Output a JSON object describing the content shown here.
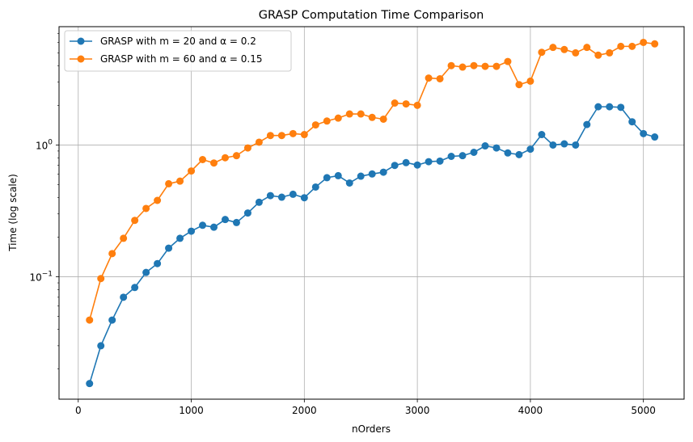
{
  "chart_data": {
    "type": "line",
    "title": "GRASP Computation Time Comparison",
    "xlabel": "nOrders",
    "ylabel": "Time (log scale)",
    "yscale": "log",
    "xlim": [
      -170,
      5360
    ],
    "ylim": [
      0.0118,
      7.9
    ],
    "xticks": [
      {
        "value": 0,
        "label": "0"
      },
      {
        "value": 1000,
        "label": "1000"
      },
      {
        "value": 2000,
        "label": "2000"
      },
      {
        "value": 3000,
        "label": "3000"
      },
      {
        "value": 4000,
        "label": "4000"
      },
      {
        "value": 5000,
        "label": "5000"
      }
    ],
    "yticks": [
      {
        "value": 0.1,
        "base": "10",
        "exp": "−1"
      },
      {
        "value": 1,
        "base": "10",
        "exp": "0"
      }
    ],
    "grid": true,
    "legend_position": "top-left",
    "x": [
      100,
      200,
      300,
      400,
      500,
      600,
      700,
      800,
      900,
      1000,
      1100,
      1200,
      1300,
      1400,
      1500,
      1600,
      1700,
      1800,
      1900,
      2000,
      2100,
      2200,
      2300,
      2400,
      2500,
      2600,
      2700,
      2800,
      2900,
      3000,
      3100,
      3200,
      3300,
      3400,
      3500,
      3600,
      3700,
      3800,
      3900,
      4000,
      4100,
      4200,
      4300,
      4400,
      4500,
      4600,
      4700,
      4800,
      4900,
      5000,
      5100
    ],
    "series": [
      {
        "name": "GRASP with m = 20 and α = 0.2",
        "color": "#1f77b4",
        "values": [
          0.0155,
          0.03,
          0.047,
          0.07,
          0.083,
          0.108,
          0.126,
          0.165,
          0.196,
          0.222,
          0.246,
          0.238,
          0.272,
          0.258,
          0.305,
          0.368,
          0.413,
          0.402,
          0.423,
          0.398,
          0.48,
          0.565,
          0.585,
          0.515,
          0.58,
          0.603,
          0.622,
          0.7,
          0.735,
          0.705,
          0.747,
          0.755,
          0.82,
          0.83,
          0.88,
          0.985,
          0.95,
          0.87,
          0.845,
          0.93,
          1.2,
          1.0,
          1.02,
          1.0,
          1.43,
          1.95,
          1.95,
          1.93,
          1.5,
          1.22,
          1.15
        ]
      },
      {
        "name": "GRASP with m = 60 and α = 0.15",
        "color": "#ff7f0e",
        "values": [
          0.047,
          0.097,
          0.15,
          0.196,
          0.268,
          0.33,
          0.38,
          0.508,
          0.532,
          0.635,
          0.775,
          0.73,
          0.8,
          0.83,
          0.95,
          1.05,
          1.18,
          1.18,
          1.22,
          1.2,
          1.42,
          1.52,
          1.6,
          1.72,
          1.72,
          1.62,
          1.57,
          2.08,
          2.05,
          2.0,
          3.22,
          3.18,
          4.0,
          3.9,
          4.0,
          3.95,
          3.95,
          4.3,
          2.87,
          3.05,
          5.05,
          5.5,
          5.3,
          5.0,
          5.5,
          4.8,
          5.0,
          5.6,
          5.6,
          6.0,
          5.85
        ]
      }
    ]
  }
}
